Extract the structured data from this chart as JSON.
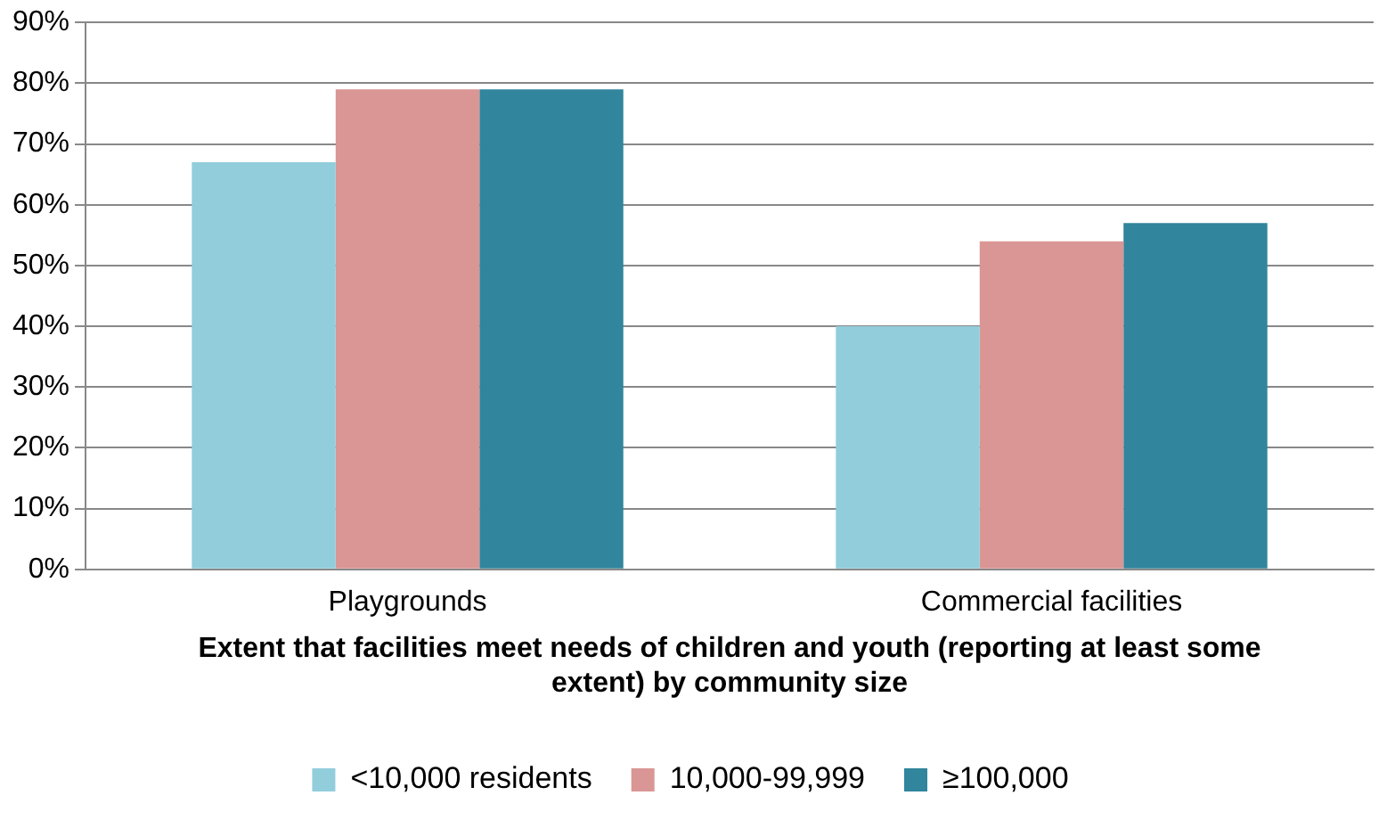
{
  "chart_data": {
    "type": "bar",
    "xlabel": "Extent that facilities meet needs of children and youth (reporting at least some extent) by community size",
    "categories": [
      "Playgrounds",
      "Commercial facilities"
    ],
    "series": [
      {
        "name": "<10,000 residents",
        "color": "#92cddc",
        "values": [
          67,
          40
        ]
      },
      {
        "name": "10,000-99,999",
        "color": "#d99694",
        "values": [
          79,
          54
        ]
      },
      {
        "name": "≥100,000",
        "color": "#31859c",
        "values": [
          79,
          57
        ]
      }
    ],
    "ylim": [
      0,
      90
    ],
    "yticks": [
      {
        "value": 0,
        "label": "0%"
      },
      {
        "value": 10,
        "label": "10%"
      },
      {
        "value": 20,
        "label": "20%"
      },
      {
        "value": 30,
        "label": "30%"
      },
      {
        "value": 40,
        "label": "40%"
      },
      {
        "value": 50,
        "label": "50%"
      },
      {
        "value": 60,
        "label": "60%"
      },
      {
        "value": 70,
        "label": "70%"
      },
      {
        "value": 80,
        "label": "80%"
      },
      {
        "value": 90,
        "label": "90%"
      }
    ],
    "grid": "y",
    "legend": "bottom"
  }
}
